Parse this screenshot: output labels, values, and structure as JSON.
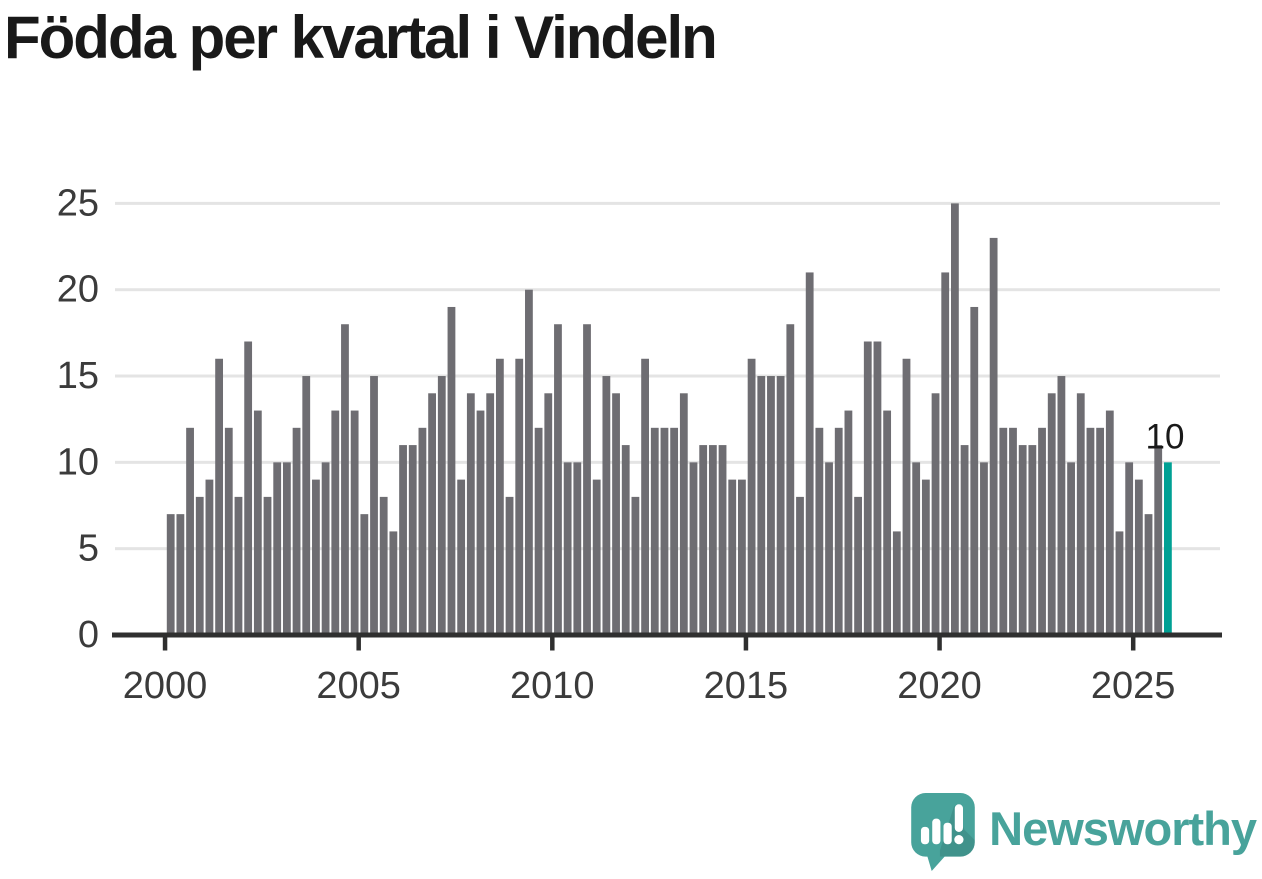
{
  "title": "Födda per kvartal i Vindeln",
  "chart_data": {
    "type": "bar",
    "title": "Födda per kvartal i Vindeln",
    "x_start": "2000 Q1",
    "x_frequency": "quarterly",
    "values": [
      7,
      7,
      12,
      8,
      9,
      16,
      12,
      8,
      17,
      13,
      8,
      10,
      10,
      12,
      15,
      9,
      10,
      13,
      18,
      13,
      7,
      15,
      8,
      6,
      11,
      11,
      12,
      14,
      15,
      19,
      9,
      14,
      13,
      14,
      16,
      8,
      16,
      20,
      12,
      14,
      18,
      10,
      10,
      18,
      9,
      15,
      14,
      11,
      8,
      16,
      12,
      12,
      12,
      14,
      10,
      11,
      11,
      11,
      9,
      9,
      16,
      15,
      15,
      15,
      18,
      8,
      21,
      12,
      10,
      12,
      13,
      8,
      17,
      17,
      13,
      6,
      16,
      10,
      9,
      14,
      21,
      25,
      11,
      19,
      10,
      23,
      12,
      12,
      11,
      11,
      12,
      14,
      15,
      10,
      14,
      12,
      12,
      13,
      6,
      10,
      9,
      7,
      11,
      10
    ],
    "highlight": {
      "index": 103,
      "value": 10,
      "label": "10",
      "color": "#00a094"
    },
    "bar_color": "#6e6d72",
    "xticks": [
      "2000",
      "2005",
      "2010",
      "2015",
      "2020",
      "2025"
    ],
    "yticks": [
      "0",
      "5",
      "10",
      "15",
      "20",
      "25"
    ],
    "ylim": [
      0,
      25
    ],
    "grid": true,
    "legend_position": "none",
    "grid_color": "#e4e4e4",
    "axis_color": "#2f2f2f",
    "tick_label_color": "#3b3b3b",
    "value_label_color": "#191919"
  },
  "branding": {
    "name": "Newsworthy",
    "color": "#48a39b"
  }
}
